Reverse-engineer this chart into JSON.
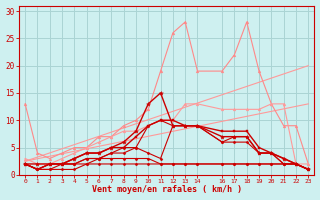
{
  "background_color": "#cef0f0",
  "grid_color": "#aad4d4",
  "xlabel": "Vent moyen/en rafales ( km/h )",
  "xlim": [
    -0.5,
    23.5
  ],
  "ylim": [
    0,
    31
  ],
  "yticks": [
    0,
    5,
    10,
    15,
    20,
    25,
    30
  ],
  "xticks": [
    0,
    1,
    2,
    3,
    4,
    5,
    6,
    7,
    8,
    9,
    10,
    11,
    12,
    13,
    14,
    16,
    17,
    18,
    19,
    20,
    21,
    22,
    23
  ],
  "series": [
    {
      "x": [
        0,
        23
      ],
      "y": [
        2.5,
        13
      ],
      "color": "#ff9999",
      "lw": 0.8,
      "marker": null,
      "ms": 0
    },
    {
      "x": [
        0,
        23
      ],
      "y": [
        2.5,
        20
      ],
      "color": "#ff9999",
      "lw": 0.8,
      "marker": null,
      "ms": 0
    },
    {
      "x": [
        0,
        1,
        2,
        3,
        4,
        5,
        6,
        7,
        8,
        9,
        10,
        11,
        12,
        13,
        14,
        16,
        17,
        18,
        19,
        20,
        21,
        22,
        23
      ],
      "y": [
        13,
        4,
        3,
        4,
        5,
        5,
        7,
        7,
        9,
        10,
        12,
        19,
        26,
        28,
        19,
        19,
        22,
        28,
        19,
        13,
        9,
        9,
        2
      ],
      "color": "#ff8888",
      "lw": 0.8,
      "marker": "^",
      "ms": 2
    },
    {
      "x": [
        0,
        1,
        2,
        3,
        4,
        5,
        6,
        7,
        8,
        9,
        10,
        11,
        12,
        13,
        14,
        16,
        17,
        18,
        19,
        20,
        21,
        22,
        23
      ],
      "y": [
        3,
        2,
        2,
        3,
        4,
        5,
        6,
        7,
        8,
        8,
        9,
        10,
        10,
        13,
        13,
        12,
        12,
        12,
        12,
        13,
        13,
        2,
        2
      ],
      "color": "#ff9999",
      "lw": 0.8,
      "marker": "^",
      "ms": 2
    },
    {
      "x": [
        0,
        1,
        2,
        3,
        4,
        5,
        6,
        7,
        8,
        9,
        10,
        11,
        12,
        13,
        14,
        16,
        17,
        18,
        19,
        20,
        21,
        22,
        23
      ],
      "y": [
        2,
        2,
        2,
        2,
        3,
        4,
        4,
        5,
        6,
        8,
        13,
        15,
        9,
        9,
        9,
        7,
        7,
        7,
        4,
        4,
        3,
        2,
        1
      ],
      "color": "#cc0000",
      "lw": 1.0,
      "marker": "*",
      "ms": 3
    },
    {
      "x": [
        0,
        1,
        2,
        3,
        4,
        5,
        6,
        7,
        8,
        9,
        10,
        11,
        12,
        13,
        14,
        16,
        17,
        18,
        19,
        20,
        21,
        22,
        23
      ],
      "y": [
        2,
        1,
        2,
        2,
        2,
        3,
        3,
        4,
        5,
        5,
        9,
        10,
        9,
        9,
        9,
        6,
        7,
        7,
        4,
        4,
        2,
        2,
        1
      ],
      "color": "#cc0000",
      "lw": 0.8,
      "marker": "D",
      "ms": 1.5
    },
    {
      "x": [
        0,
        1,
        2,
        3,
        4,
        5,
        6,
        7,
        8,
        9,
        10,
        11,
        12,
        13,
        14,
        16,
        17,
        18,
        19,
        20,
        21,
        22,
        23
      ],
      "y": [
        2,
        1,
        2,
        2,
        2,
        3,
        3,
        4,
        4,
        5,
        4,
        3,
        9,
        9,
        9,
        6,
        6,
        6,
        4,
        4,
        2,
        2,
        1
      ],
      "color": "#cc0000",
      "lw": 0.8,
      "marker": "D",
      "ms": 1.5
    },
    {
      "x": [
        0,
        1,
        2,
        3,
        4,
        5,
        6,
        7,
        8,
        9,
        10,
        11,
        12,
        13,
        14,
        16,
        17,
        18,
        19,
        20,
        21,
        22,
        23
      ],
      "y": [
        2,
        1,
        1,
        2,
        2,
        2,
        3,
        3,
        3,
        3,
        3,
        2,
        2,
        2,
        2,
        2,
        2,
        2,
        2,
        2,
        2,
        2,
        1
      ],
      "color": "#cc0000",
      "lw": 0.8,
      "marker": "D",
      "ms": 1.5
    },
    {
      "x": [
        0,
        1,
        2,
        3,
        4,
        5,
        6,
        7,
        8,
        9,
        10,
        11,
        12,
        13,
        14,
        16,
        17,
        18,
        19,
        20,
        21,
        22,
        23
      ],
      "y": [
        2,
        1,
        1,
        1,
        1,
        2,
        2,
        2,
        2,
        2,
        2,
        2,
        2,
        2,
        2,
        2,
        2,
        2,
        2,
        2,
        2,
        2,
        1
      ],
      "color": "#cc0000",
      "lw": 0.8,
      "marker": "D",
      "ms": 1.5
    },
    {
      "x": [
        0,
        1,
        2,
        3,
        4,
        5,
        6,
        7,
        8,
        9,
        10,
        11,
        12,
        13,
        14,
        16,
        17,
        18,
        19,
        20,
        21,
        22,
        23
      ],
      "y": [
        2,
        1,
        2,
        2,
        3,
        4,
        4,
        5,
        5,
        7,
        9,
        10,
        10,
        9,
        9,
        8,
        8,
        8,
        5,
        4,
        3,
        2,
        1
      ],
      "color": "#cc0000",
      "lw": 1.0,
      "marker": "s",
      "ms": 2
    }
  ]
}
